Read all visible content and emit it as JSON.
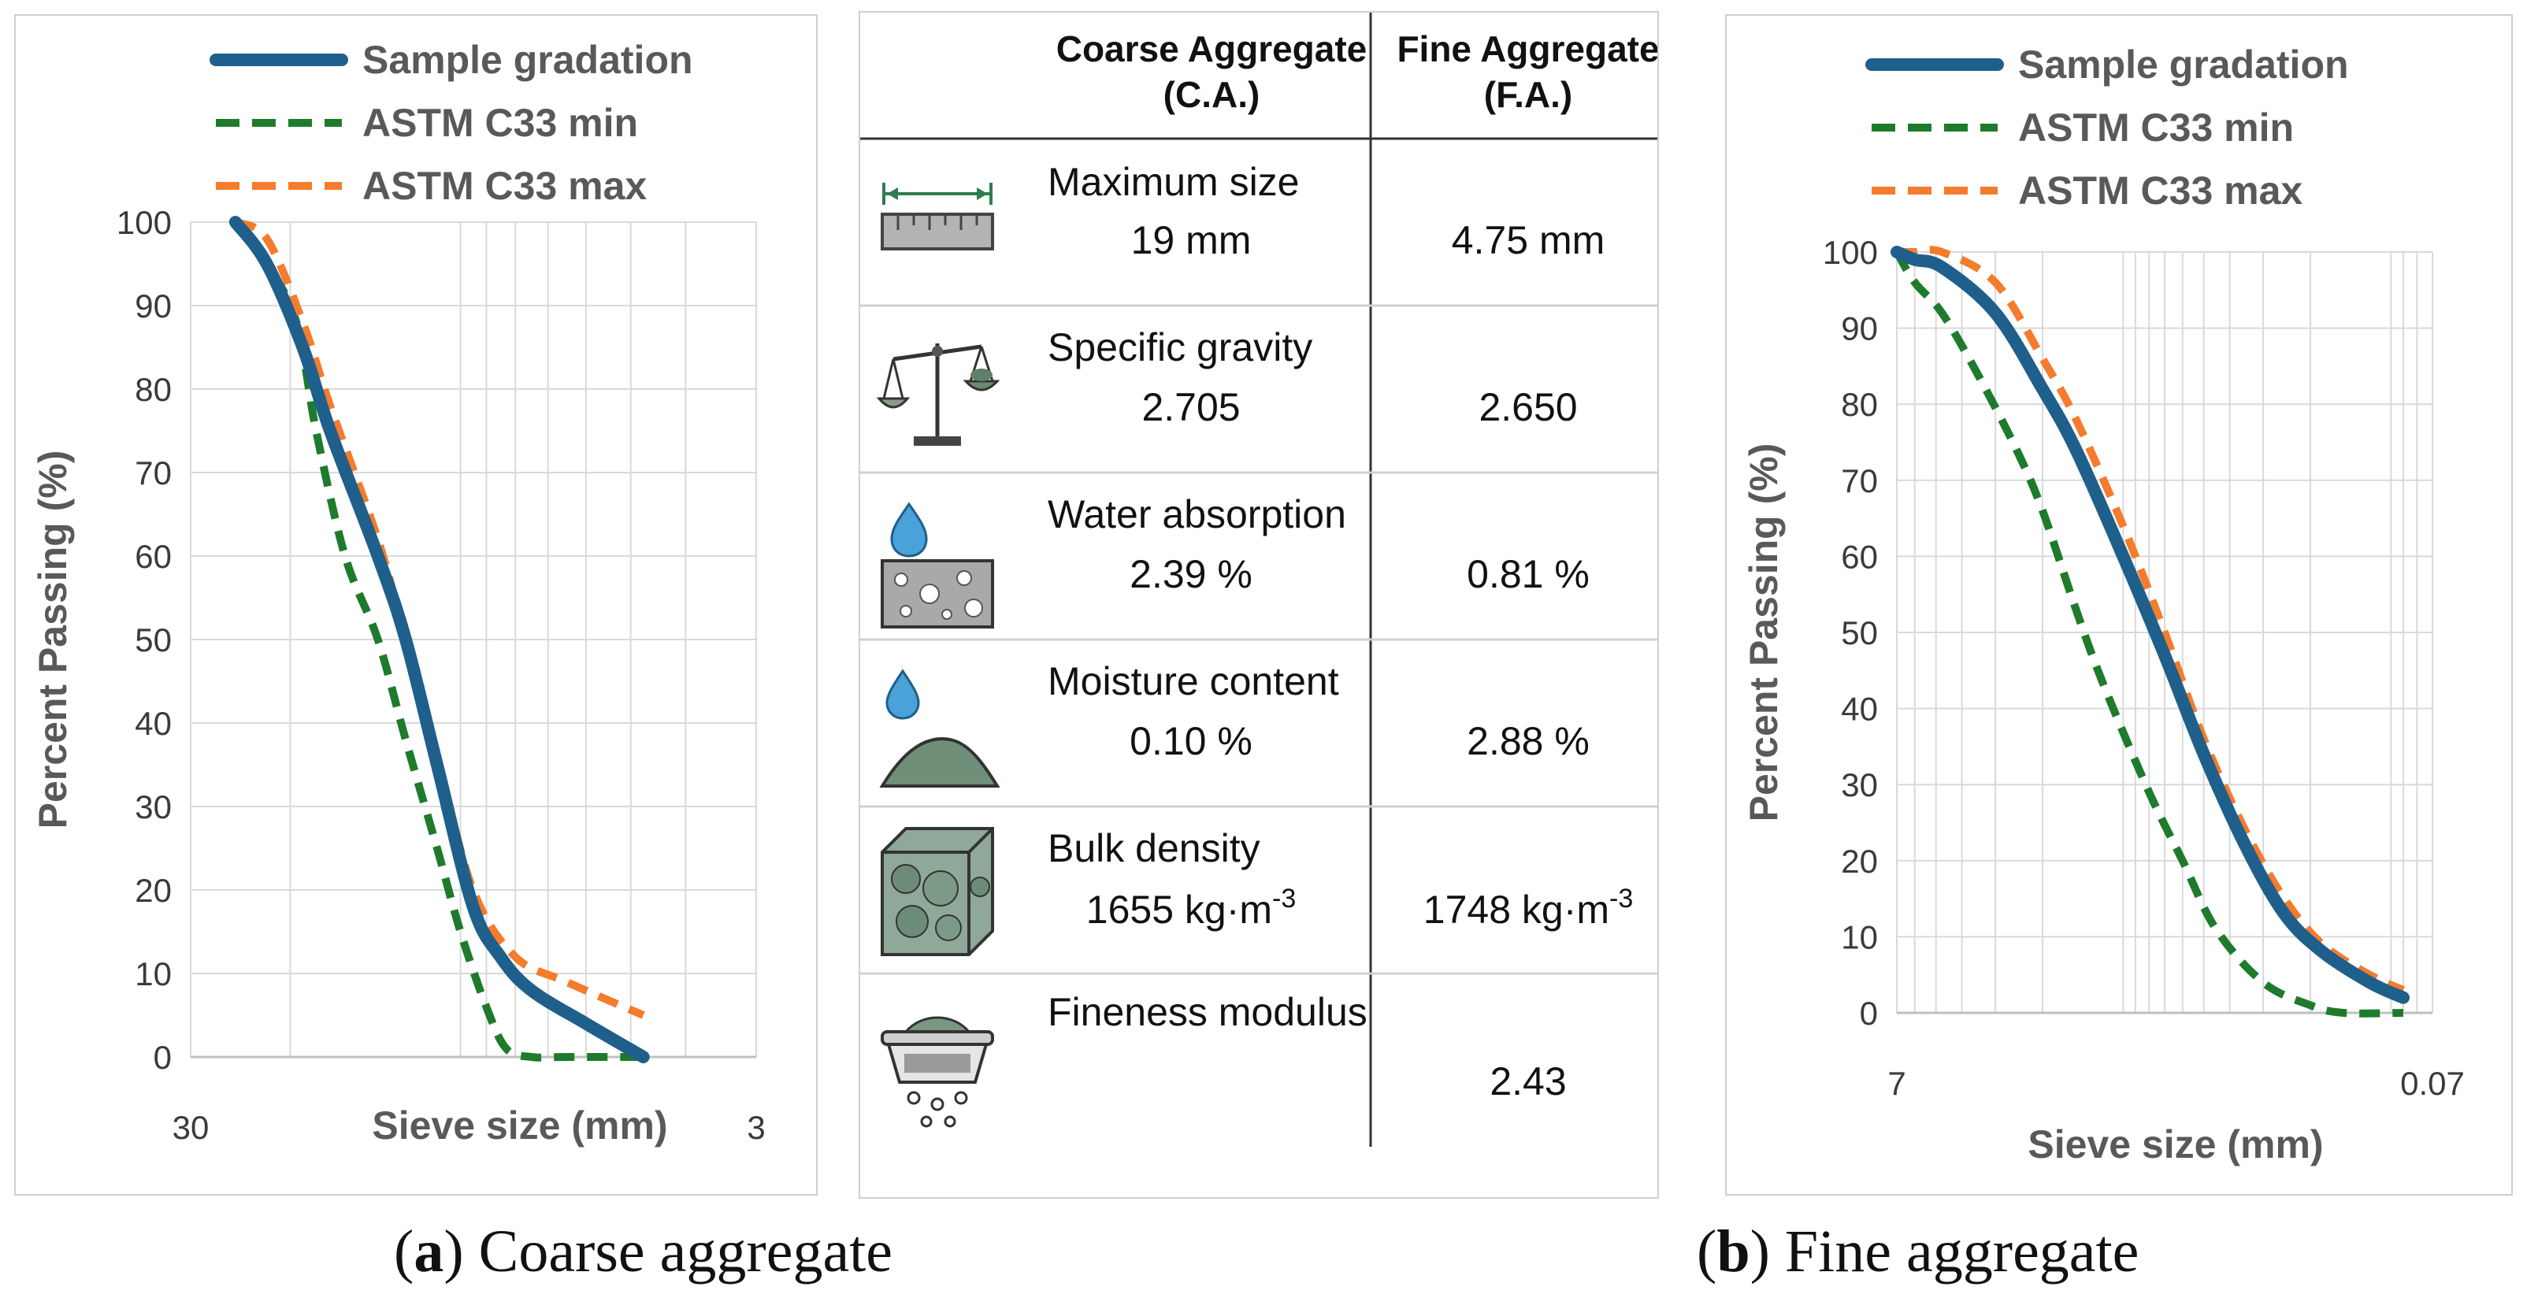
{
  "chart_data": [
    {
      "type": "line",
      "panel_caption_label": "a",
      "panel_caption_text": "Coarse aggregate",
      "xlabel": "Sieve size (mm)",
      "ylabel": "Percent Passing (%)",
      "x_scale": "log",
      "xlim": [
        30,
        3
      ],
      "x_ticks": [
        "30",
        "3"
      ],
      "ylim": [
        0,
        100
      ],
      "y_ticks": [
        "0",
        "10",
        "20",
        "30",
        "40",
        "50",
        "60",
        "70",
        "80",
        "90",
        "100"
      ],
      "grid": true,
      "legend_position": "top",
      "series": [
        {
          "name": "Sample gradation",
          "color": "#1f5f8b",
          "style": "solid",
          "x": [
            25,
            22,
            19,
            17,
            14,
            12.5,
            11,
            9.5,
            8.5,
            7.5,
            6,
            4.75
          ],
          "y": [
            100,
            95,
            85,
            75,
            60,
            50,
            35,
            18,
            12,
            8,
            4,
            0
          ]
        },
        {
          "name": "ASTM C33 min",
          "color": "#1e7b2b",
          "style": "dashed",
          "x": [
            25,
            22,
            19.5,
            18,
            16,
            14,
            12.5,
            11,
            10,
            9,
            8.3,
            7.5,
            6.5,
            4.75
          ],
          "y": [
            100,
            95,
            88,
            75,
            60,
            50,
            38,
            25,
            15,
            6,
            1,
            0,
            0,
            0
          ]
        },
        {
          "name": "ASTM C33 max",
          "color": "#f47c2c",
          "style": "dashed",
          "x": [
            25,
            22,
            19,
            17,
            14,
            12.5,
            11,
            9.5,
            8,
            6.5,
            4.75
          ],
          "y": [
            100,
            98,
            88,
            78,
            62,
            50,
            36,
            20,
            12,
            9,
            5
          ]
        }
      ]
    },
    {
      "type": "line",
      "panel_caption_label": "b",
      "panel_caption_text": "Fine aggregate",
      "xlabel": "Sieve size (mm)",
      "ylabel": "Percent Passing (%)",
      "x_scale": "log",
      "xlim": [
        7,
        0.07
      ],
      "x_ticks": [
        "7",
        "0.07"
      ],
      "ylim": [
        0,
        100
      ],
      "y_ticks": [
        "0",
        "10",
        "20",
        "30",
        "40",
        "50",
        "60",
        "70",
        "80",
        "90",
        "100"
      ],
      "grid": true,
      "legend_position": "top",
      "series": [
        {
          "name": "Sample gradation",
          "color": "#1f5f8b",
          "style": "solid",
          "x": [
            9.5,
            6,
            4.75,
            3,
            2,
            1.5,
            1,
            0.7,
            0.5,
            0.35,
            0.25,
            0.18,
            0.12,
            0.09
          ],
          "y": [
            100,
            99,
            98,
            92,
            82,
            74,
            60,
            47,
            34,
            22,
            13,
            8,
            4,
            2
          ]
        },
        {
          "name": "ASTM C33 min",
          "color": "#1e7b2b",
          "style": "dashed",
          "x": [
            9.5,
            6,
            4.75,
            3.5,
            2.5,
            2,
            1.5,
            1.18,
            0.8,
            0.6,
            0.45,
            0.3,
            0.2,
            0.15,
            0.09
          ],
          "y": [
            100,
            96,
            92,
            84,
            74,
            66,
            53,
            43,
            29,
            20,
            11,
            4,
            1,
            0,
            0
          ]
        },
        {
          "name": "ASTM C33 max",
          "color": "#f47c2c",
          "style": "dashed",
          "x": [
            9.5,
            6,
            4.75,
            3,
            2,
            1.5,
            1,
            0.7,
            0.5,
            0.35,
            0.25,
            0.18,
            0.12,
            0.09
          ],
          "y": [
            100,
            100,
            100,
            96,
            86,
            78,
            64,
            50,
            36,
            24,
            15,
            9,
            5,
            3
          ]
        }
      ]
    }
  ],
  "table": {
    "headers": [
      "",
      "Coarse Aggregate\n(C.A.)",
      "Fine Aggregate\n(F.A.)"
    ],
    "header_ca_line1": "Coarse Aggregate",
    "header_ca_line2": "(C.A.)",
    "header_fa_line1": "Fine Aggregate",
    "header_fa_line2": "(F.A.)",
    "rows": [
      {
        "icon": "ruler-icon",
        "name": "Maximum size",
        "ca": "19 mm",
        "fa": "4.75 mm"
      },
      {
        "icon": "balance-scale-icon",
        "name": "Specific gravity",
        "ca": "2.705",
        "fa": "2.650"
      },
      {
        "icon": "water-drop-sponge-icon",
        "name": "Water absorption",
        "ca": "2.39 %",
        "fa": "0.81 %"
      },
      {
        "icon": "water-drop-sand-pile-icon",
        "name": "Moisture content",
        "ca": "0.10 %",
        "fa": "2.88 %"
      },
      {
        "icon": "aggregate-cube-icon",
        "name": "Bulk density",
        "ca": "1655 kg·m",
        "ca_sup": "-3",
        "fa": "1748 kg·m",
        "fa_sup": "-3"
      },
      {
        "icon": "sieve-icon",
        "name": "Fineness modulus",
        "ca": "",
        "fa": "2.43"
      }
    ]
  },
  "colors": {
    "sample": "#1f5f8b",
    "astm_min": "#1e7b2b",
    "astm_max": "#f47c2c",
    "grid": "#d9d9d9",
    "frame": "#cfcfcf"
  }
}
